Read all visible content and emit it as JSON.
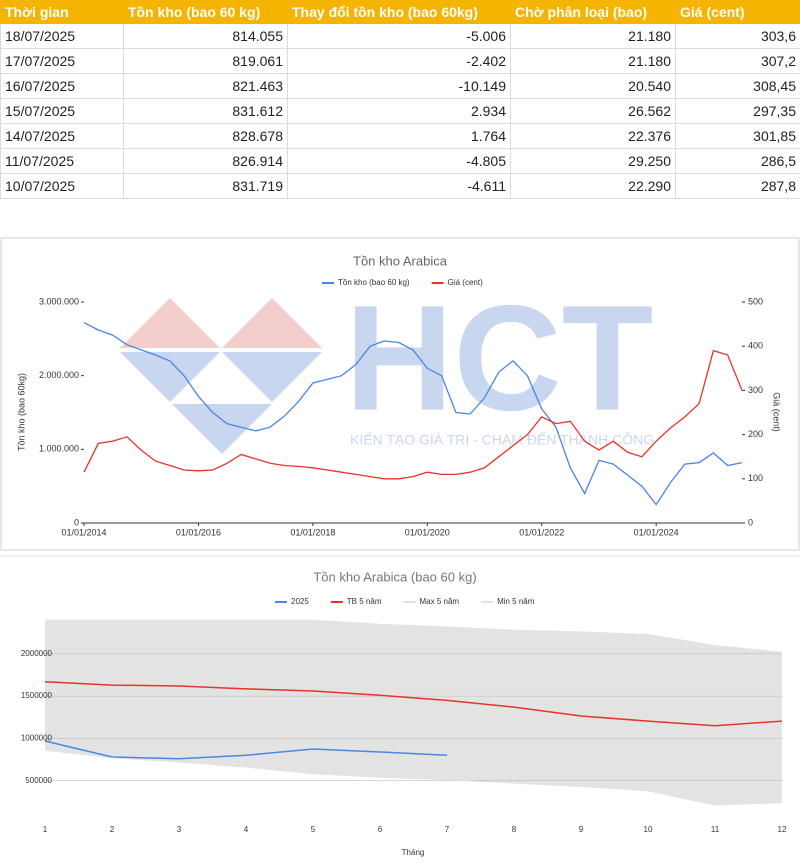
{
  "table": {
    "header": [
      "Thời gian",
      "Tồn kho (bao 60 kg)",
      "Thay đổi tồn kho (bao 60kg)",
      "Chờ phân loại (bao)",
      "Giá (cent)"
    ],
    "rows": [
      [
        "18/07/2025",
        "814.055",
        "-5.006",
        "21.180",
        "303,6"
      ],
      [
        "17/07/2025",
        "819.061",
        "-2.402",
        "21.180",
        "307,2"
      ],
      [
        "16/07/2025",
        "821.463",
        "-10.149",
        "20.540",
        "308,45"
      ],
      [
        "15/07/2025",
        "831.612",
        "2.934",
        "26.562",
        "297,35"
      ],
      [
        "14/07/2025",
        "828.678",
        "1.764",
        "22.376",
        "301,85"
      ],
      [
        "11/07/2025",
        "826.914",
        "-4.805",
        "29.250",
        "286,5"
      ],
      [
        "10/07/2025",
        "831.719",
        "-4.611",
        "22.290",
        "287,8"
      ]
    ]
  },
  "watermark": {
    "logo": "HCT",
    "tagline": "KIẾN TẠO GIÁ TRỊ - CHẠM ĐẾN THÀNH CÔNG"
  },
  "chart_data": [
    {
      "type": "line",
      "title": "Tồn kho Arabica",
      "y_label": "Tồn kho (bao 60kg)",
      "y2_label": "Giá (cent)",
      "x": [
        "01/01/2014",
        "01/04/2014",
        "01/07/2014",
        "01/10/2014",
        "01/01/2015",
        "01/04/2015",
        "01/07/2015",
        "01/10/2015",
        "01/01/2016",
        "01/04/2016",
        "01/07/2016",
        "01/10/2016",
        "01/01/2017",
        "01/04/2017",
        "01/07/2017",
        "01/10/2017",
        "01/01/2018",
        "01/04/2018",
        "01/07/2018",
        "01/10/2018",
        "01/01/2019",
        "01/04/2019",
        "01/07/2019",
        "01/10/2019",
        "01/01/2020",
        "01/04/2020",
        "01/07/2020",
        "01/10/2020",
        "01/01/2021",
        "01/04/2021",
        "01/07/2021",
        "01/10/2021",
        "01/01/2022",
        "01/04/2022",
        "01/07/2022",
        "01/10/2022",
        "01/01/2023",
        "01/04/2023",
        "01/07/2023",
        "01/10/2023",
        "01/01/2024",
        "01/04/2024",
        "01/07/2024",
        "01/10/2024",
        "01/01/2025",
        "01/04/2025",
        "01/07/2025"
      ],
      "series": [
        {
          "name": "Tồn kho (bao 60 kg)",
          "color": "#4a86e8",
          "axis": "y",
          "values": [
            2720000,
            2620000,
            2550000,
            2420000,
            2350000,
            2280000,
            2200000,
            2000000,
            1720000,
            1500000,
            1350000,
            1300000,
            1250000,
            1300000,
            1450000,
            1650000,
            1900000,
            1950000,
            2000000,
            2150000,
            2400000,
            2470000,
            2450000,
            2350000,
            2100000,
            2000000,
            1500000,
            1480000,
            1700000,
            2050000,
            2200000,
            2000000,
            1550000,
            1300000,
            750000,
            400000,
            850000,
            800000,
            650000,
            500000,
            250000,
            550000,
            800000,
            820000,
            950000,
            780000,
            820000
          ]
        },
        {
          "name": "Giá (cent)",
          "color": "#e8332a",
          "axis": "y2",
          "values": [
            115,
            180,
            185,
            195,
            165,
            140,
            130,
            120,
            118,
            120,
            135,
            155,
            145,
            135,
            130,
            128,
            125,
            120,
            115,
            110,
            105,
            100,
            100,
            105,
            115,
            110,
            110,
            115,
            125,
            150,
            175,
            200,
            240,
            225,
            230,
            185,
            165,
            185,
            160,
            150,
            185,
            215,
            240,
            270,
            390,
            380,
            300
          ]
        }
      ],
      "xlim": [
        "01/01/2014",
        "01/07/2025"
      ],
      "xticks": [
        "01/01/2014",
        "01/01/2016",
        "01/01/2018",
        "01/01/2020",
        "01/01/2022",
        "01/01/2024"
      ],
      "ylim": [
        0,
        3000000
      ],
      "yticks": [
        0,
        {
          "value": 1000000,
          "label": "1.000.000"
        },
        {
          "value": 2000000,
          "label": "2.000.000"
        },
        {
          "value": 3000000,
          "label": "3.000.000"
        }
      ],
      "y2lim": [
        0,
        500
      ],
      "y2ticks": [
        0,
        100,
        200,
        300,
        400,
        500
      ]
    },
    {
      "type": "line",
      "title": "Tồn kho Arabica (bao 60 kg)",
      "x_label": "Tháng",
      "categories": [
        "1",
        "2",
        "3",
        "4",
        "5",
        "6",
        "7",
        "8",
        "9",
        "10",
        "11",
        "12"
      ],
      "series": [
        {
          "name": "2025",
          "color": "#4a86e8",
          "values": [
            970000,
            780000,
            760000,
            800000,
            875000,
            840000,
            800000,
            null,
            null,
            null,
            null,
            null
          ]
        },
        {
          "name": "TB 5 năm",
          "color": "#e8332a",
          "values": [
            1670000,
            1630000,
            1620000,
            1585000,
            1560000,
            1510000,
            1450000,
            1370000,
            1265000,
            1205000,
            1150000,
            1205000
          ]
        },
        {
          "name": "Max 5 năm",
          "color": "#e3e3e3",
          "values": [
            2400000,
            2400000,
            2400000,
            2400000,
            2400000,
            2350000,
            2320000,
            2280000,
            2260000,
            2230000,
            2100000,
            2020000
          ]
        },
        {
          "name": "Min 5 năm",
          "color": "#e3e3e3",
          "values": [
            860000,
            770000,
            720000,
            660000,
            580000,
            540000,
            510000,
            470000,
            430000,
            380000,
            210000,
            240000
          ]
        }
      ],
      "ylim": [
        0,
        2400000
      ],
      "yticks": [
        500000,
        1000000,
        1500000,
        2000000
      ],
      "band": [
        "Max 5 năm",
        "Min 5 năm"
      ]
    }
  ]
}
